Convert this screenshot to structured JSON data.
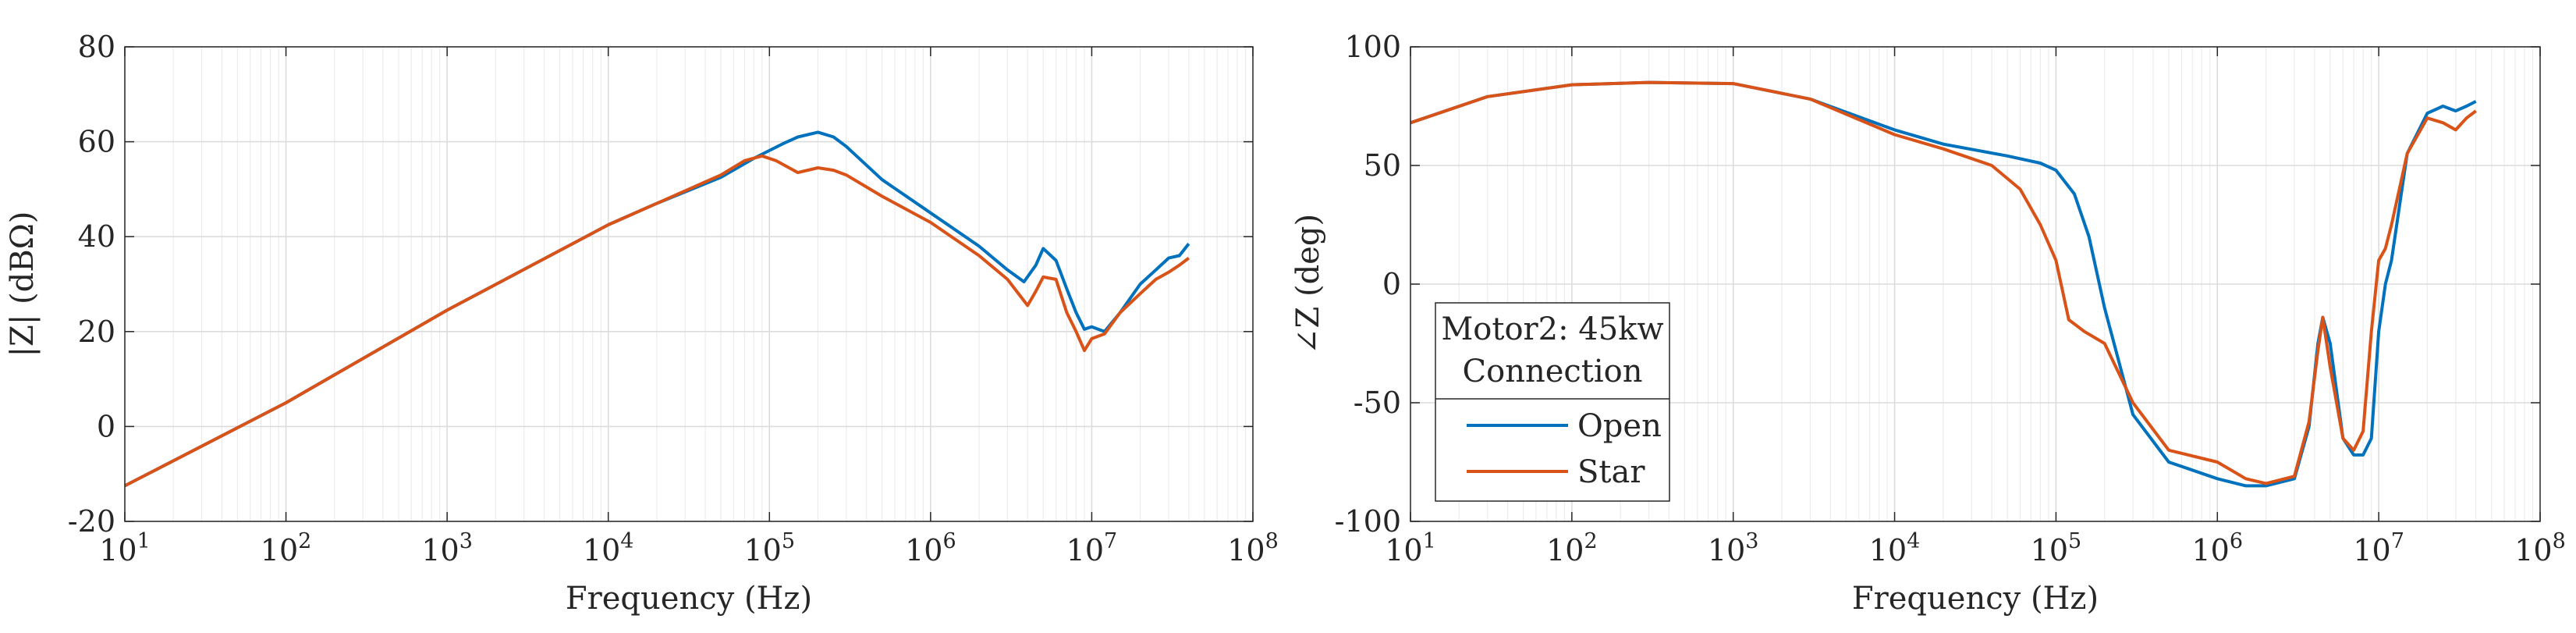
{
  "chart_data": [
    {
      "type": "line",
      "xscale": "log",
      "xlabel": "Frequency (Hz)",
      "ylabel": "|Z| (dBΩ)",
      "xlim": [
        10,
        100000000
      ],
      "ylim": [
        -20,
        80
      ],
      "xticks": [
        10,
        100,
        1000,
        10000,
        100000,
        1000000,
        10000000,
        100000000
      ],
      "xtick_base": [
        "10",
        "10",
        "10",
        "10",
        "10",
        "10",
        "10",
        "10"
      ],
      "xtick_exp": [
        "1",
        "2",
        "3",
        "4",
        "5",
        "6",
        "7",
        "8"
      ],
      "yticks": [
        -20,
        0,
        20,
        40,
        60,
        80
      ],
      "ytick_labels": [
        "-20",
        "0",
        "20",
        "40",
        "60",
        "80"
      ],
      "grid": true,
      "series": [
        {
          "name": "Open",
          "color": "#0072BD",
          "x": [
            10,
            100,
            1000,
            10000,
            20000,
            50000,
            80000,
            120000,
            150000,
            200000,
            250000,
            300000,
            500000,
            1000000,
            2000000,
            3000000,
            3800000,
            4500000,
            5000000,
            6000000,
            7000000,
            8000000,
            9000000,
            10000000,
            12000000,
            15000000,
            20000000,
            25000000,
            30000000,
            35000000,
            40000000
          ],
          "y": [
            -12.5,
            5,
            24.5,
            42.5,
            47,
            52.5,
            56.5,
            59.5,
            61,
            62,
            61,
            59,
            52,
            45,
            38,
            33,
            30.5,
            34,
            37.5,
            35,
            29,
            24,
            20.5,
            21,
            20,
            24,
            30,
            33,
            35.5,
            36,
            38.5
          ]
        },
        {
          "name": "Star",
          "color": "#D95319",
          "x": [
            10,
            100,
            1000,
            10000,
            20000,
            50000,
            70000,
            90000,
            110000,
            150000,
            200000,
            250000,
            300000,
            500000,
            1000000,
            2000000,
            3000000,
            4000000,
            4500000,
            5000000,
            6000000,
            7000000,
            8000000,
            9000000,
            10000000,
            12000000,
            15000000,
            20000000,
            25000000,
            30000000,
            35000000,
            40000000
          ],
          "y": [
            -12.5,
            5,
            24.5,
            42.5,
            47,
            53,
            56,
            57,
            56,
            53.5,
            54.5,
            54,
            53,
            48.5,
            43,
            36,
            31,
            25.5,
            28.5,
            31.5,
            31,
            24,
            20,
            16,
            18.5,
            19.5,
            24,
            28,
            31,
            32.5,
            34,
            35.5
          ]
        }
      ]
    },
    {
      "type": "line",
      "xscale": "log",
      "xlabel": "Frequency (Hz)",
      "ylabel": "∠Z (deg)",
      "xlim": [
        10,
        100000000
      ],
      "ylim": [
        -100,
        100
      ],
      "xticks": [
        10,
        100,
        1000,
        10000,
        100000,
        1000000,
        10000000,
        100000000
      ],
      "xtick_base": [
        "10",
        "10",
        "10",
        "10",
        "10",
        "10",
        "10",
        "10"
      ],
      "xtick_exp": [
        "1",
        "2",
        "3",
        "4",
        "5",
        "6",
        "7",
        "8"
      ],
      "yticks": [
        -100,
        -50,
        0,
        50,
        100
      ],
      "ytick_labels": [
        "-100",
        "-50",
        "0",
        "50",
        "100"
      ],
      "grid": true,
      "legend": {
        "title_lines": [
          "Motor2: 45kw",
          "Connection"
        ],
        "entries": [
          "Open",
          "Star"
        ],
        "location": "bottom-left"
      },
      "series": [
        {
          "name": "Open",
          "color": "#0072BD",
          "x": [
            10,
            30,
            100,
            300,
            1000,
            3000,
            10000,
            20000,
            50000,
            80000,
            100000,
            130000,
            160000,
            200000,
            300000,
            500000,
            1000000,
            1500000,
            2000000,
            3000000,
            3700000,
            4200000,
            4500000,
            5000000,
            6000000,
            7000000,
            8000000,
            9000000,
            10000000,
            11000000,
            12000000,
            15000000,
            20000000,
            25000000,
            30000000,
            35000000,
            40000000
          ],
          "y": [
            68,
            79,
            84,
            85,
            84.5,
            78,
            65,
            59,
            54,
            51,
            48,
            38,
            20,
            -10,
            -55,
            -75,
            -82,
            -85,
            -85,
            -82,
            -60,
            -25,
            -14,
            -25,
            -65,
            -72,
            -72,
            -65,
            -20,
            0,
            10,
            55,
            72,
            75,
            73,
            75,
            77
          ]
        },
        {
          "name": "Star",
          "color": "#D95319",
          "x": [
            10,
            30,
            100,
            300,
            1000,
            3000,
            10000,
            20000,
            40000,
            60000,
            80000,
            100000,
            120000,
            150000,
            200000,
            300000,
            500000,
            1000000,
            1500000,
            2000000,
            3000000,
            3700000,
            4200000,
            4500000,
            5000000,
            6000000,
            7000000,
            8000000,
            9000000,
            10000000,
            11000000,
            12000000,
            15000000,
            20000000,
            25000000,
            30000000,
            35000000,
            40000000
          ],
          "y": [
            68,
            79,
            84,
            85,
            84.5,
            78,
            63,
            57,
            50,
            40,
            25,
            10,
            -15,
            -20,
            -25,
            -50,
            -70,
            -75,
            -82,
            -84,
            -81,
            -58,
            -28,
            -14,
            -35,
            -65,
            -70,
            -62,
            -20,
            10,
            15,
            25,
            55,
            70,
            68,
            65,
            70,
            73
          ]
        }
      ]
    }
  ]
}
